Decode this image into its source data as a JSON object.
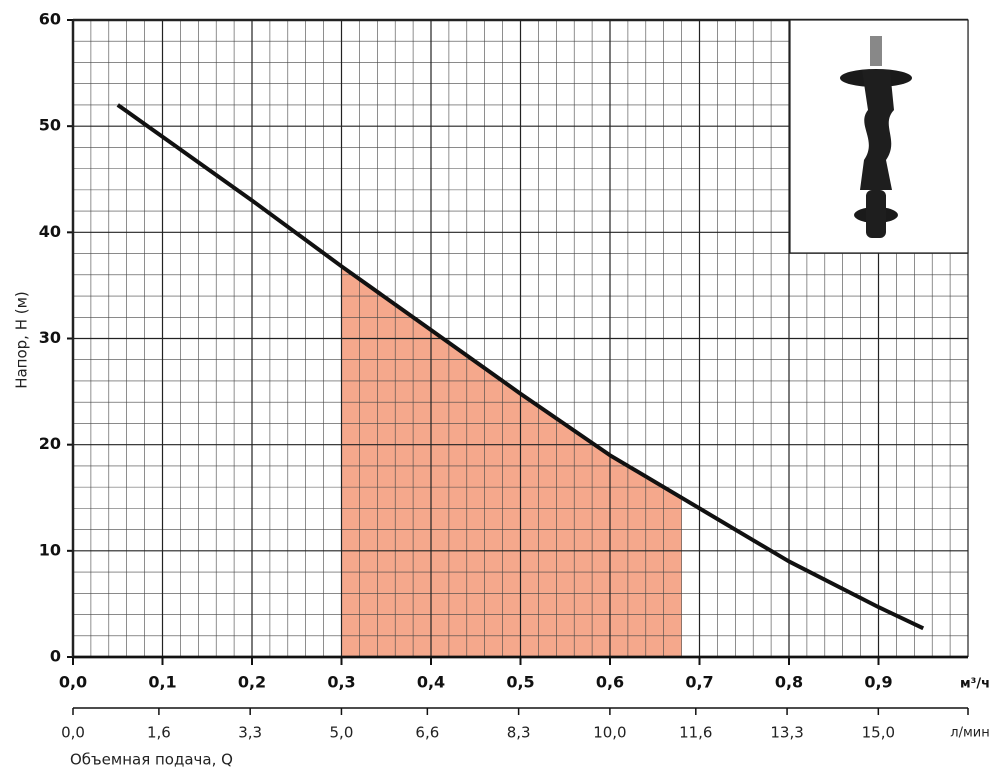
{
  "chart_data": {
    "type": "line",
    "y_label": "Напор, H (м)",
    "x_unit": "м³/ч",
    "x2_unit": "л/мин",
    "x2_label": "Объемная подача, Q",
    "x": [
      0.05,
      0.1,
      0.2,
      0.3,
      0.4,
      0.5,
      0.6,
      0.7,
      0.8,
      0.9,
      0.95
    ],
    "series": [
      {
        "color": "#111111",
        "values": [
          52,
          49,
          43,
          36.8,
          30.8,
          24.8,
          19,
          14,
          9,
          4.7,
          2.7
        ]
      }
    ],
    "highlight_range": [
      0.3,
      0.68
    ],
    "highlight_color": "#f5a88c",
    "xlim": [
      0,
      1.0
    ],
    "xticks": [
      {
        "value": 0,
        "label": "0,0"
      },
      {
        "value": 0.1,
        "label": "0,1"
      },
      {
        "value": 0.2,
        "label": "0,2"
      },
      {
        "value": 0.3,
        "label": "0,3"
      },
      {
        "value": 0.4,
        "label": "0,4"
      },
      {
        "value": 0.5,
        "label": "0,5"
      },
      {
        "value": 0.6,
        "label": "0,6"
      },
      {
        "value": 0.7,
        "label": "0,7"
      },
      {
        "value": 0.8,
        "label": "0,8"
      },
      {
        "value": 0.9,
        "label": "0,9"
      }
    ],
    "x2lim": [
      0,
      16.67
    ],
    "x2ticks": [
      {
        "value": 0,
        "label": "0,0"
      },
      {
        "value": 1.6,
        "label": "1,6"
      },
      {
        "value": 3.3,
        "label": "3,3"
      },
      {
        "value": 5.0,
        "label": "5,0"
      },
      {
        "value": 6.6,
        "label": "6,6"
      },
      {
        "value": 8.3,
        "label": "8,3"
      },
      {
        "value": 10.0,
        "label": "10,0"
      },
      {
        "value": 11.6,
        "label": "11,6"
      },
      {
        "value": 13.3,
        "label": "13,3"
      },
      {
        "value": 15.0,
        "label": "15,0"
      }
    ],
    "ylim": [
      0,
      60
    ],
    "yticks": [
      0,
      10,
      20,
      30,
      40,
      50,
      60
    ],
    "grid": true
  }
}
